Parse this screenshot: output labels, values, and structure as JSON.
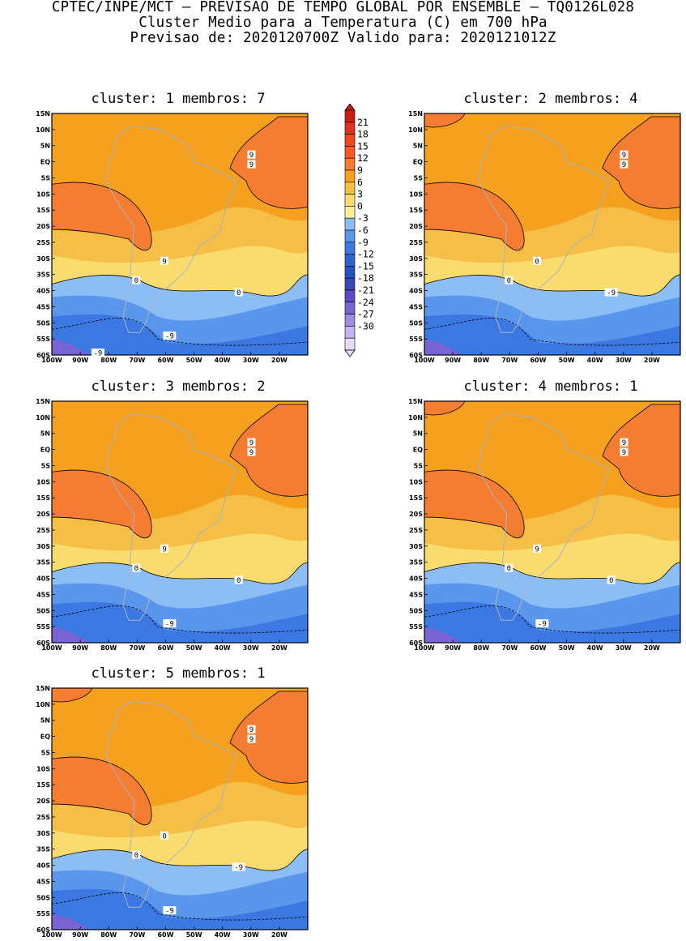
{
  "header": {
    "line1": "CPTEC/INPE/MCT – PREVISAO DE TEMPO GLOBAL POR ENSEMBLE – TQ0126L028",
    "line2": "Cluster Medio para a Temperatura (C) em 700 hPa",
    "line3": "Previsao de: 2020120700Z   Valido para: 2020121012Z"
  },
  "lat_ticks": [
    "15N",
    "10N",
    "5N",
    "EQ",
    "5S",
    "10S",
    "15S",
    "20S",
    "25S",
    "30S",
    "35S",
    "40S",
    "45S",
    "50S",
    "55S",
    "60S"
  ],
  "lon_ticks": [
    "100W",
    "90W",
    "80W",
    "70W",
    "60W",
    "50W",
    "40W",
    "30W",
    "20W"
  ],
  "colorbar": {
    "labels": [
      "21",
      "18",
      "15",
      "12",
      "9",
      "6",
      "3",
      "0",
      "-3",
      "-6",
      "-9",
      "-12",
      "-15",
      "-18",
      "-21",
      "-24",
      "-27",
      "-30"
    ],
    "colors": [
      "#c81e14",
      "#e0321e",
      "#f0461e",
      "#f55a28",
      "#f57d32",
      "#f5a01e",
      "#f5be46",
      "#fadc6e",
      "#fff09b",
      "#8cbef5",
      "#5a96eb",
      "#3c78e1",
      "#2d64d2",
      "#2850c3",
      "#3c46b4",
      "#5a4bc3",
      "#7864d2",
      "#a08ce1",
      "#c3b4f0",
      "#e6dcfa"
    ]
  },
  "panels": [
    {
      "title": "cluster: 1   membros: 7",
      "labels": [
        "9",
        "9",
        "9",
        "0",
        "0",
        "-9",
        "-9"
      ]
    },
    {
      "title": "cluster: 2   membros: 4",
      "labels": [
        "9",
        "9",
        "0",
        "0",
        "-9"
      ]
    },
    {
      "title": "cluster: 3   membros: 2",
      "labels": [
        "9",
        "9",
        "9",
        "0",
        "0",
        "-9"
      ]
    },
    {
      "title": "cluster: 4   membros: 1",
      "labels": [
        "9",
        "9",
        "9",
        "0",
        "0",
        "-9"
      ]
    },
    {
      "title": "cluster: 5   membros: 1",
      "labels": [
        "9",
        "9",
        "0",
        "0",
        "-9",
        "-9"
      ]
    }
  ]
}
